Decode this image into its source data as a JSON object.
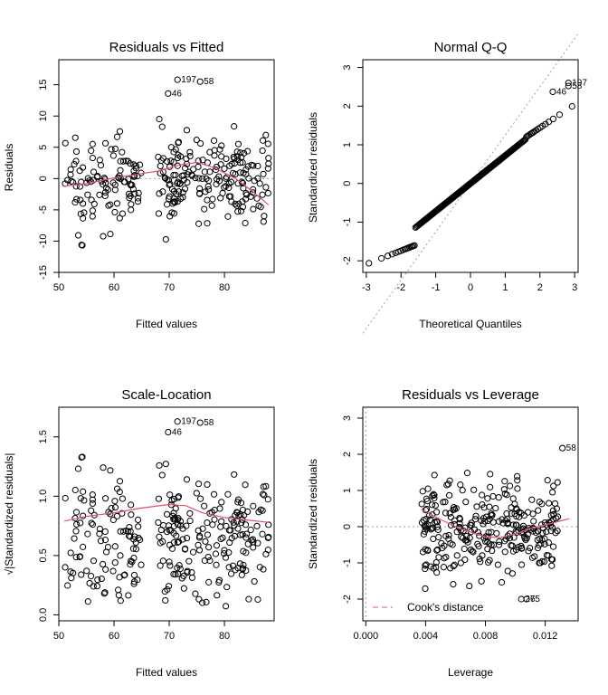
{
  "colors": {
    "smooth": "#df536b",
    "ref": "#a0a0a0",
    "points": "#000000"
  },
  "chart_data": [
    {
      "type": "scatter",
      "id": "rvf",
      "title": "Residuals vs Fitted",
      "xlabel": "Fitted values",
      "ylabel": "Residuals",
      "xlim": [
        50,
        89
      ],
      "ylim": [
        -15,
        19
      ],
      "xticks": [
        50,
        60,
        70,
        80
      ],
      "yticks": [
        -15,
        -10,
        -5,
        0,
        5,
        10,
        15
      ],
      "hline": 0,
      "labeled_points": [
        {
          "x": 71.5,
          "y": 15.8,
          "label": "197"
        },
        {
          "x": 75.6,
          "y": 15.5,
          "label": "58"
        },
        {
          "x": 69.8,
          "y": 13.6,
          "label": "46"
        }
      ],
      "smooth": {
        "x": [
          51,
          55,
          60,
          65,
          68,
          72,
          75,
          78,
          82,
          85,
          88
        ],
        "y": [
          -1.2,
          -0.8,
          0.1,
          0.8,
          1.2,
          2.2,
          2.6,
          1.8,
          0.0,
          -2.0,
          -4.2
        ]
      }
    },
    {
      "type": "scatter",
      "id": "qq",
      "title": "Normal Q-Q",
      "xlabel": "Theoretical Quantiles",
      "ylabel": "Standardized residuals",
      "xlim": [
        -3.1,
        3.1
      ],
      "ylim": [
        -2.3,
        3.2
      ],
      "xticks": [
        -3,
        -2,
        -1,
        0,
        1,
        2,
        3
      ],
      "yticks": [
        -2,
        -1,
        0,
        1,
        2,
        3
      ],
      "refline": {
        "slope": 1.25,
        "intercept": 0
      },
      "labeled_points": [
        {
          "x": 2.82,
          "y": 2.6,
          "label": "197"
        },
        {
          "x": 2.82,
          "y": 2.52,
          "label": "58"
        },
        {
          "x": 2.37,
          "y": 2.37,
          "label": "46"
        }
      ]
    },
    {
      "type": "scatter",
      "id": "sl",
      "title": "Scale-Location",
      "xlabel": "Fitted values",
      "ylabel": "√|Standardized residuals|",
      "xlim": [
        50,
        89
      ],
      "ylim": [
        -0.05,
        1.75
      ],
      "xticks": [
        50,
        60,
        70,
        80
      ],
      "yticks": [
        0.0,
        0.5,
        1.0,
        1.5
      ],
      "ytick_labels": [
        "0.0",
        "0.5",
        "1.0",
        "1.5"
      ],
      "labeled_points": [
        {
          "x": 71.5,
          "y": 1.63,
          "label": "197"
        },
        {
          "x": 75.6,
          "y": 1.62,
          "label": "58"
        },
        {
          "x": 69.8,
          "y": 1.54,
          "label": "46"
        }
      ],
      "smooth": {
        "x": [
          51,
          55,
          60,
          65,
          70,
          73,
          76,
          80,
          84,
          88
        ],
        "y": [
          0.79,
          0.83,
          0.86,
          0.9,
          0.93,
          0.92,
          0.86,
          0.82,
          0.8,
          0.78
        ]
      }
    },
    {
      "type": "scatter",
      "id": "rvl",
      "title": "Residuals vs Leverage",
      "xlabel": "Leverage",
      "ylabel": "Standardized residuals",
      "xlim": [
        -0.0002,
        0.0142
      ],
      "ylim": [
        -2.6,
        3.3
      ],
      "xticks": [
        0.0,
        0.004,
        0.008,
        0.012
      ],
      "xtick_labels": [
        "0.000",
        "0.004",
        "0.008",
        "0.012"
      ],
      "yticks": [
        -2,
        -1,
        0,
        1,
        2,
        3
      ],
      "vline": 0,
      "hline": 0,
      "legend": {
        "label": "Cook's distance",
        "position": "bottom-left"
      },
      "labeled_points": [
        {
          "x": 0.01315,
          "y": 2.17,
          "label": "58"
        },
        {
          "x": 0.0104,
          "y": -2.0,
          "label": "275"
        },
        {
          "x": 0.01075,
          "y": -2.0,
          "label": "6"
        }
      ],
      "smooth": {
        "x": [
          0.0037,
          0.005,
          0.006,
          0.007,
          0.008,
          0.009,
          0.01,
          0.011,
          0.012,
          0.0136
        ],
        "y": [
          0.48,
          0.2,
          0.0,
          -0.15,
          -0.28,
          -0.3,
          -0.2,
          -0.05,
          0.05,
          0.22
        ]
      }
    }
  ]
}
